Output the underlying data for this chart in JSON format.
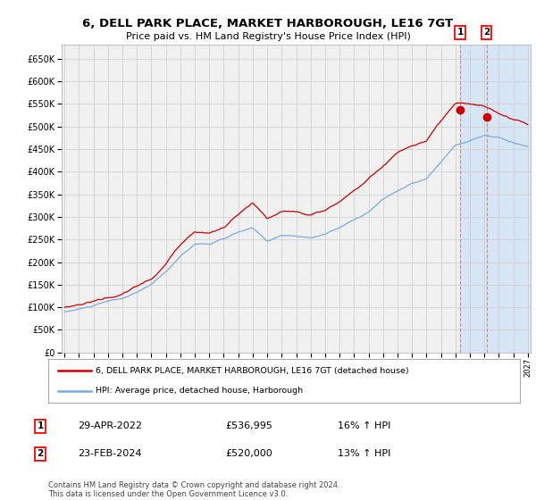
{
  "title": "6, DELL PARK PLACE, MARKET HARBOROUGH, LE16 7GT",
  "subtitle": "Price paid vs. HM Land Registry's House Price Index (HPI)",
  "legend_line1": "6, DELL PARK PLACE, MARKET HARBOROUGH, LE16 7GT (detached house)",
  "legend_line2": "HPI: Average price, detached house, Harborough",
  "transaction1_date": "29-APR-2022",
  "transaction1_price": "£536,995",
  "transaction1_hpi": "16% ↑ HPI",
  "transaction2_date": "23-FEB-2024",
  "transaction2_price": "£520,000",
  "transaction2_hpi": "13% ↑ HPI",
  "footer": "Contains HM Land Registry data © Crown copyright and database right 2024.\nThis data is licensed under the Open Government Licence v3.0.",
  "hpi_color": "#7aabdc",
  "price_color": "#cc0000",
  "marker_color": "#cc0000",
  "grid_color": "#cccccc",
  "plot_bg_color": "#f0f0f0",
  "shade_color": "#d0e4f7",
  "ylim": [
    0,
    680000
  ],
  "yticks": [
    0,
    50000,
    100000,
    150000,
    200000,
    250000,
    300000,
    350000,
    400000,
    450000,
    500000,
    550000,
    600000,
    650000
  ],
  "year_start": 1995,
  "year_end": 2027,
  "transaction1_year": 2022.33,
  "transaction2_year": 2024.15,
  "transaction1_value": 536995,
  "transaction2_value": 520000
}
